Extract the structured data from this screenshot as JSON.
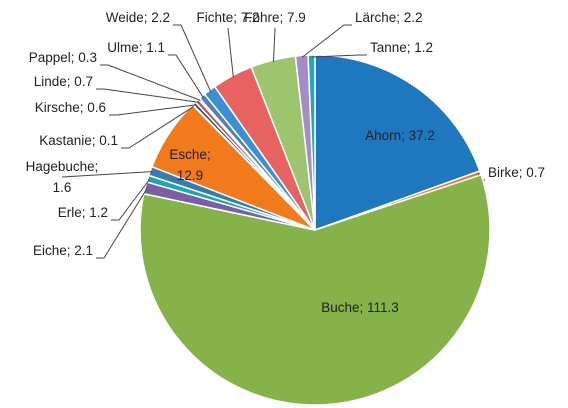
{
  "chart_data": {
    "type": "pie",
    "categories": [
      "Ahorn",
      "Birke",
      "Buche",
      "Eiche",
      "Erle",
      "Hagebuche",
      "Esche",
      "Kastanie",
      "Kirsche",
      "Linde",
      "Pappel",
      "Ulme",
      "Weide",
      "Fichte",
      "Föhre",
      "Lärche",
      "Tanne"
    ],
    "values": [
      37.2,
      0.7,
      111.3,
      2.1,
      1.2,
      1.6,
      12.9,
      0.1,
      0.6,
      0.7,
      0.3,
      1.1,
      2.2,
      7.2,
      7.9,
      2.2,
      1.2
    ],
    "value_labels": [
      "Ahorn; 37.2",
      "Birke; 0.7",
      "Buche; 111.3",
      "Eiche; 2.1",
      "Erle; 1.2",
      "Hagebuche;\n1.6",
      "Esche;\n12.9",
      "Kastanie; 0.1",
      "Kirsche; 0.6",
      "Linde; 0.7",
      "Pappel; 0.3",
      "Ulme; 1.1",
      "Weide; 2.2",
      "Fichte; 7.2",
      "Föhre; 7.9",
      "Lärche; 2.2",
      "Tanne; 1.2"
    ],
    "colors": [
      "#1f77bd",
      "#e8743b",
      "#86b24a",
      "#7a5ea8",
      "#1da4b8",
      "#3b78b0",
      "#f07a1c",
      "#17375e",
      "#1f4e79",
      "#c0504d",
      "#9bbb59",
      "#4f81bd",
      "#3d8fd4",
      "#e66362",
      "#9cc56e",
      "#a58bc8",
      "#1ea7c0"
    ]
  }
}
